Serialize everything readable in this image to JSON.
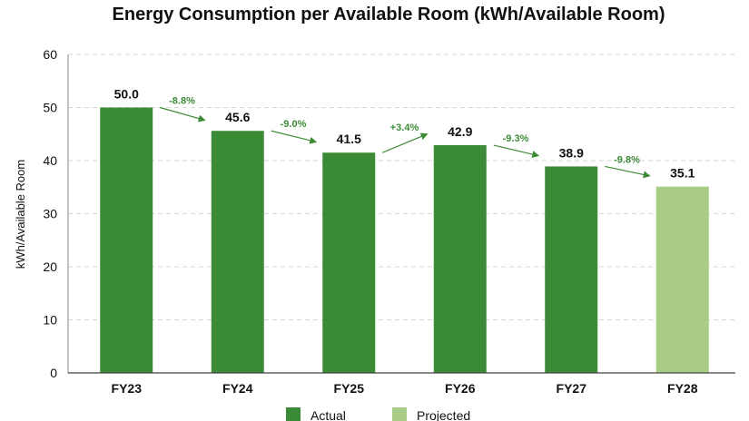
{
  "chart_data": {
    "type": "bar",
    "title": "Energy Consumption per Available Room (kWh/Available Room)",
    "xlabel": "",
    "ylabel": "kWh/Available Room",
    "ylim": [
      0,
      60
    ],
    "yticks": [
      0,
      10,
      20,
      30,
      40,
      50,
      60
    ],
    "grid": true,
    "categories": [
      "FY23",
      "FY24",
      "FY25",
      "FY26",
      "FY27",
      "FY28"
    ],
    "values": [
      50.0,
      45.6,
      41.5,
      42.9,
      38.9,
      35.1
    ],
    "value_labels": [
      "50.0",
      "45.6",
      "41.5",
      "42.9",
      "38.9",
      "35.1"
    ],
    "bar_status": [
      "Actual",
      "Actual",
      "Actual",
      "Actual",
      "Actual",
      "Projected"
    ],
    "changes": [
      "-8.8%",
      "-9.0%",
      "+3.4%",
      "-9.3%",
      "-9.8%"
    ],
    "legend": {
      "placement": "bottom",
      "entries": [
        {
          "name": "Actual",
          "color": "#3a8a36"
        },
        {
          "name": "Projected",
          "color": "#a9cd86"
        }
      ]
    },
    "colors": {
      "actual": "#3a8a36",
      "projected": "#a9cd86",
      "change_label": "#3d8b37",
      "arrow": "#3d8b37",
      "grid": "#d6d6d6"
    }
  }
}
